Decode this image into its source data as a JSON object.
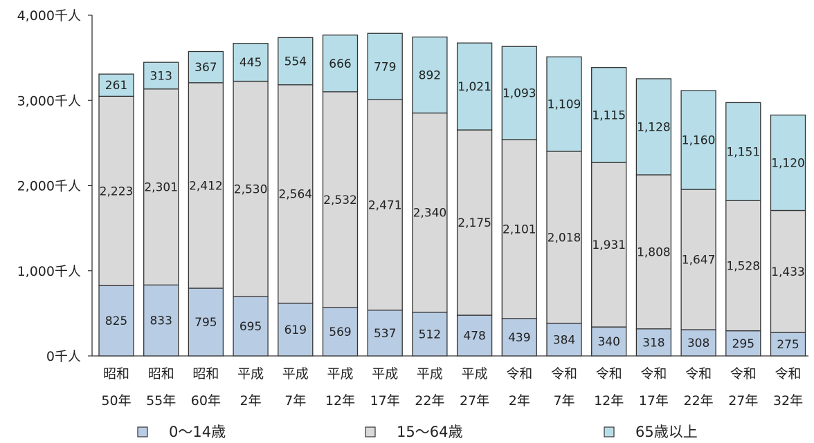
{
  "chart_data": {
    "type": "bar",
    "stacked": true,
    "categories": [
      [
        "昭和",
        "50年"
      ],
      [
        "昭和",
        "55年"
      ],
      [
        "昭和",
        "60年"
      ],
      [
        "平成",
        "2年"
      ],
      [
        "平成",
        "7年"
      ],
      [
        "平成",
        "12年"
      ],
      [
        "平成",
        "17年"
      ],
      [
        "平成",
        "22年"
      ],
      [
        "平成",
        "27年"
      ],
      [
        "令和",
        "2年"
      ],
      [
        "令和",
        "7年"
      ],
      [
        "令和",
        "12年"
      ],
      [
        "令和",
        "17年"
      ],
      [
        "令和",
        "22年"
      ],
      [
        "令和",
        "27年"
      ],
      [
        "令和",
        "32年"
      ]
    ],
    "series": [
      {
        "name": "0〜14歳",
        "color": "#b8cce4",
        "values": [
          825,
          833,
          795,
          695,
          619,
          569,
          537,
          512,
          478,
          439,
          384,
          340,
          318,
          308,
          295,
          275
        ]
      },
      {
        "name": "15〜64歳",
        "color": "#d9d9d9",
        "values": [
          2223,
          2301,
          2412,
          2530,
          2564,
          2532,
          2471,
          2340,
          2175,
          2101,
          2018,
          1931,
          1808,
          1647,
          1528,
          1433
        ]
      },
      {
        "name": "65歳以上",
        "color": "#b7dee8",
        "values": [
          261,
          313,
          367,
          445,
          554,
          666,
          779,
          892,
          1021,
          1093,
          1109,
          1115,
          1128,
          1160,
          1151,
          1120
        ]
      }
    ],
    "yticks": [
      "0千人",
      "1,000千人",
      "2,000千人",
      "3,000千人",
      "4,000千人"
    ],
    "ylim": [
      0,
      4000
    ],
    "grid": false,
    "legend_position": "bottom"
  }
}
